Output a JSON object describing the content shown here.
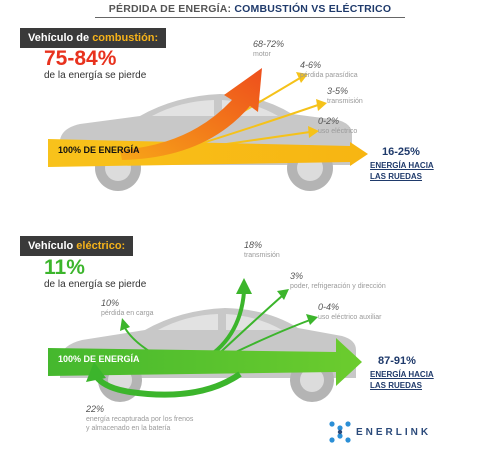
{
  "title": {
    "prefix": "PÉRDIDA DE ENERGÍA: ",
    "accent": "COMBUSTIÓN VS ELÉCTRICO"
  },
  "combustion": {
    "header_prefix": "Vehículo de ",
    "header_accent": "combustión:",
    "lost_pct": "75-84%",
    "lost_text": "de la energía se pierde",
    "energy_label": "100% DE ENERGÍA",
    "branches": [
      {
        "pct": "68-72%",
        "desc": "motor"
      },
      {
        "pct": "4-6%",
        "desc": "pérdida parasídica"
      },
      {
        "pct": "3-5%",
        "desc": "transmisión"
      },
      {
        "pct": "0-2%",
        "desc": "uso eléctrico"
      }
    ],
    "result_pct": "16-25%",
    "result_line1": "ENERGÍA HACIA",
    "result_line2": "LAS RUEDAS",
    "colors": {
      "accent": "#e8321e",
      "arrow": "#f5b21a",
      "motor_arrow": "#f26a1b"
    }
  },
  "electric": {
    "header_prefix": "Vehículo ",
    "header_accent": "eléctrico:",
    "lost_pct": "11%",
    "lost_text": "de la energía se pierde",
    "energy_label": "100% DE ENERGÍA",
    "branches": [
      {
        "pct": "18%",
        "desc": "transmisión"
      },
      {
        "pct": "3%",
        "desc": "poder, refrigeración y dirección"
      },
      {
        "pct": "0-4%",
        "desc": "uso eléctrico auxiliar"
      },
      {
        "pct": "10%",
        "desc": "pérdida en carga"
      }
    ],
    "regen_pct": "22%",
    "regen_line1": "energía recapturada por los frenos",
    "regen_line2": "y almacenado en la batería",
    "result_pct": "87-91%",
    "result_line1": "ENERGÍA HACIA",
    "result_line2": "LAS RUEDAS",
    "colors": {
      "accent": "#3cb52c",
      "arrow": "#3cb52c"
    }
  },
  "brand": {
    "name": "ENERLINK",
    "icon": "enerlink-logo-icon",
    "color": "#2b4a7a"
  }
}
